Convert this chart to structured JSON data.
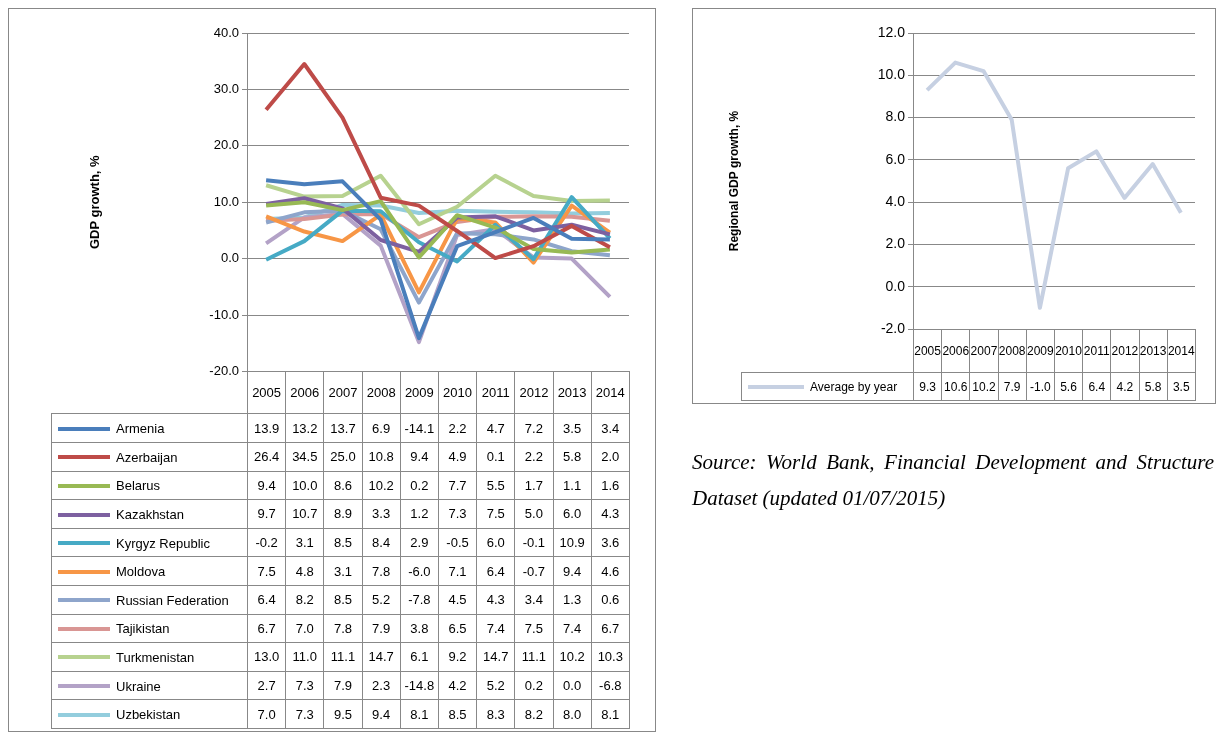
{
  "chart_data": [
    {
      "type": "line",
      "ylabel": "GDP growth, %",
      "categories": [
        "2005",
        "2006",
        "2007",
        "2008",
        "2009",
        "2010",
        "2011",
        "2012",
        "2013",
        "2014"
      ],
      "series": [
        {
          "name": "Armenia",
          "color": "#4a7ebb",
          "values": [
            13.9,
            13.2,
            13.7,
            6.9,
            -14.1,
            2.2,
            4.7,
            7.2,
            3.5,
            3.4
          ],
          "value_labels": [
            "13.9",
            "13.2",
            "13.7",
            "6.9",
            "-14.1",
            "2.2",
            "4.7",
            "7.2",
            "3.5",
            "3.4"
          ]
        },
        {
          "name": "Azerbaijan",
          "color": "#be4b48",
          "values": [
            26.4,
            34.5,
            25.0,
            10.8,
            9.4,
            4.9,
            0.1,
            2.2,
            5.8,
            2.0
          ],
          "value_labels": [
            "26.4",
            "34.5",
            "25.0",
            "10.8",
            "9.4",
            "4.9",
            "0.1",
            "2.2",
            "5.8",
            "2.0"
          ]
        },
        {
          "name": "Belarus",
          "color": "#98b954",
          "values": [
            9.4,
            10.0,
            8.6,
            10.2,
            0.2,
            7.7,
            5.5,
            1.7,
            1.1,
            1.6
          ],
          "value_labels": [
            "9.4",
            "10.0",
            "8.6",
            "10.2",
            "0.2",
            "7.7",
            "5.5",
            "1.7",
            "1.1",
            "1.6"
          ]
        },
        {
          "name": "Kazakhstan",
          "color": "#7d60a0",
          "values": [
            9.7,
            10.7,
            8.9,
            3.3,
            1.2,
            7.3,
            7.5,
            5.0,
            6.0,
            4.3
          ],
          "value_labels": [
            "9.7",
            "10.7",
            "8.9",
            "3.3",
            "1.2",
            "7.3",
            "7.5",
            "5.0",
            "6.0",
            "4.3"
          ]
        },
        {
          "name": "Kyrgyz Republic",
          "color": "#46aac5",
          "values": [
            -0.2,
            3.1,
            8.5,
            8.4,
            2.9,
            -0.5,
            6.0,
            -0.1,
            10.9,
            3.6
          ],
          "value_labels": [
            "-0.2",
            "3.1",
            "8.5",
            "8.4",
            "2.9",
            "-0.5",
            "6.0",
            "-0.1",
            "10.9",
            "3.6"
          ]
        },
        {
          "name": "Moldova",
          "color": "#f79646",
          "values": [
            7.5,
            4.8,
            3.1,
            7.8,
            -6.0,
            7.1,
            6.4,
            -0.7,
            9.4,
            4.6
          ],
          "value_labels": [
            "7.5",
            "4.8",
            "3.1",
            "7.8",
            "-6.0",
            "7.1",
            "6.4",
            "-0.7",
            "9.4",
            "4.6"
          ]
        },
        {
          "name": "Russian Federation",
          "color": "#8ea5cb",
          "values": [
            6.4,
            8.2,
            8.5,
            5.2,
            -7.8,
            4.5,
            4.3,
            3.4,
            1.3,
            0.6
          ],
          "value_labels": [
            "6.4",
            "8.2",
            "8.5",
            "5.2",
            "-7.8",
            "4.5",
            "4.3",
            "3.4",
            "1.3",
            "0.6"
          ]
        },
        {
          "name": "Tajikistan",
          "color": "#d99694",
          "values": [
            6.7,
            7.0,
            7.8,
            7.9,
            3.8,
            6.5,
            7.4,
            7.5,
            7.4,
            6.7
          ],
          "value_labels": [
            "6.7",
            "7.0",
            "7.8",
            "7.9",
            "3.8",
            "6.5",
            "7.4",
            "7.5",
            "7.4",
            "6.7"
          ]
        },
        {
          "name": "Turkmenistan",
          "color": "#b7d28f",
          "values": [
            13.0,
            11.0,
            11.1,
            14.7,
            6.1,
            9.2,
            14.7,
            11.1,
            10.2,
            10.3
          ],
          "value_labels": [
            "13.0",
            "11.0",
            "11.1",
            "14.7",
            "6.1",
            "9.2",
            "14.7",
            "11.1",
            "10.2",
            "10.3"
          ]
        },
        {
          "name": "Ukraine",
          "color": "#b3a2c7",
          "values": [
            2.7,
            7.3,
            7.9,
            2.3,
            -14.8,
            4.2,
            5.2,
            0.2,
            0.0,
            -6.8
          ],
          "value_labels": [
            "2.7",
            "7.3",
            "7.9",
            "2.3",
            "-14.8",
            "4.2",
            "5.2",
            "0.2",
            "0.0",
            "-6.8"
          ]
        },
        {
          "name": "Uzbekistan",
          "color": "#93cddd",
          "values": [
            7.0,
            7.3,
            9.5,
            9.4,
            8.1,
            8.5,
            8.3,
            8.2,
            8.0,
            8.1
          ],
          "value_labels": [
            "7.0",
            "7.3",
            "9.5",
            "9.4",
            "8.1",
            "8.5",
            "8.3",
            "8.2",
            "8.0",
            "8.1"
          ]
        }
      ],
      "ylim": [
        -20,
        40
      ],
      "yticks": [
        {
          "value": -20,
          "label": "-20.0"
        },
        {
          "value": -10,
          "label": "-10.0"
        },
        {
          "value": 0,
          "label": "0.0"
        },
        {
          "value": 10,
          "label": "10.0"
        },
        {
          "value": 20,
          "label": "20.0"
        },
        {
          "value": 30,
          "label": "30.0"
        },
        {
          "value": 40,
          "label": "40.0"
        }
      ],
      "grid": "y",
      "legend": "bottom",
      "marker": "none"
    },
    {
      "type": "line",
      "ylabel": "Regional GDP growth, %",
      "categories": [
        "2005",
        "2006",
        "2007",
        "2008",
        "2009",
        "2010",
        "2011",
        "2012",
        "2013",
        "2014"
      ],
      "series": [
        {
          "name": "Average by year",
          "color": "#c6d0e2",
          "values": [
            9.3,
            10.6,
            10.2,
            7.9,
            -1.0,
            5.6,
            6.4,
            4.2,
            5.8,
            3.5
          ],
          "value_labels": [
            "9.3",
            "10.6",
            "10.2",
            "7.9",
            "-1.0",
            "5.6",
            "6.4",
            "4.2",
            "5.8",
            "3.5"
          ]
        }
      ],
      "ylim": [
        -2,
        12
      ],
      "yticks": [
        {
          "value": -2,
          "label": "-2.0"
        },
        {
          "value": 0,
          "label": "0.0"
        },
        {
          "value": 2,
          "label": "2.0"
        },
        {
          "value": 4,
          "label": "4.0"
        },
        {
          "value": 6,
          "label": "6.0"
        },
        {
          "value": 8,
          "label": "8.0"
        },
        {
          "value": 10,
          "label": "10.0"
        },
        {
          "value": 12,
          "label": "12.0"
        }
      ],
      "grid": "y",
      "legend": "bottom",
      "marker": "none",
      "annotations": [
        "Source: World Bank, Financial Development and Structure Dataset (updated 01/07/2015)"
      ]
    }
  ]
}
